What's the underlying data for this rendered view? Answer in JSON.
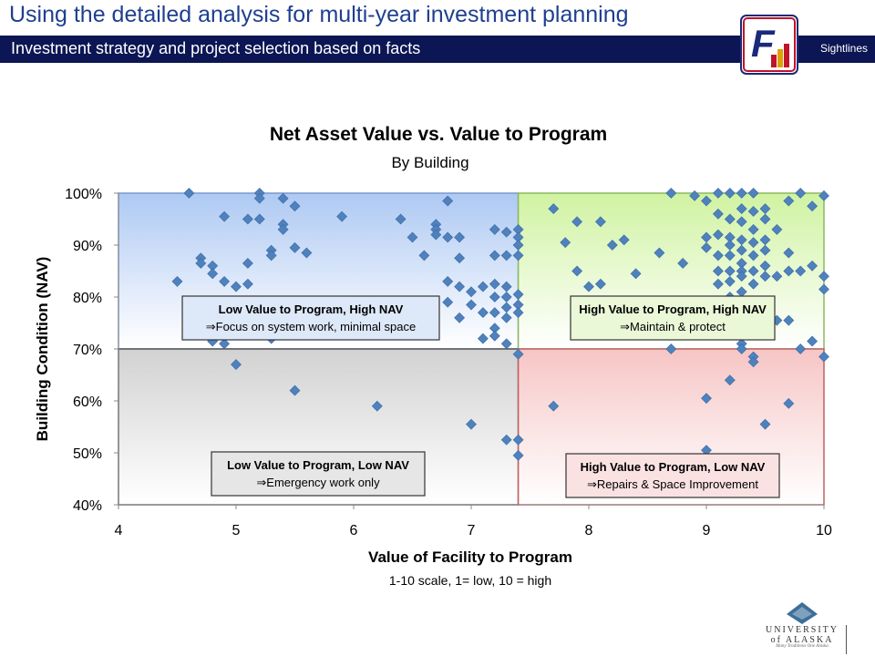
{
  "header": {
    "title": "Using the detailed analysis for multi-year investment planning",
    "subtitle": "Investment strategy and project selection based on facts",
    "brand": "Sightlines",
    "logo_letter": "F"
  },
  "footer_logo": {
    "name": "UNIVERSITY of ALASKA",
    "tagline": "Many Traditions One Alaska"
  },
  "colors": {
    "header_bar": "#0c1654",
    "title_text": "#1f3f8f",
    "marker": "#4f81bd",
    "q_top_left": "#a9c6f2",
    "q_top_right": "#cdf29c",
    "q_bottom_left": "#cfcfcf",
    "q_bottom_right": "#f6c2c2"
  },
  "chart_data": {
    "type": "scatter",
    "title": "Net Asset Value vs. Value to Program",
    "subtitle": "By Building",
    "xlabel": "Value of Facility to Program",
    "xlabel_sub": "1-10 scale, 1= low, 10 = high",
    "ylabel": "Building Condition (NAV)",
    "xlim": [
      4,
      10
    ],
    "ylim": [
      40,
      100
    ],
    "xticks": [
      4,
      5,
      6,
      7,
      8,
      9,
      10
    ],
    "yticks": [
      40,
      50,
      60,
      70,
      80,
      90,
      100
    ],
    "ytick_suffix": "%",
    "divider": {
      "x": 7.4,
      "y": 70
    },
    "quadrants": [
      {
        "id": "top-left",
        "title": "Low Value to Program, High NAV",
        "text": "Focus on system work, minimal space"
      },
      {
        "id": "top-right",
        "title": "High Value to Program, High NAV",
        "text": "Maintain & protect"
      },
      {
        "id": "bottom-left",
        "title": "Low Value to Program, Low NAV",
        "text": "Emergency work only"
      },
      {
        "id": "bottom-right",
        "title": "High Value to Program, Low NAV",
        "text": "Repairs & Space Improvement"
      }
    ],
    "arrow_glyph": "⇒",
    "points": [
      [
        4.6,
        100
      ],
      [
        5.2,
        100
      ],
      [
        5.2,
        99
      ],
      [
        5.4,
        99
      ],
      [
        5.5,
        97.5
      ],
      [
        4.9,
        95.5
      ],
      [
        5.1,
        95
      ],
      [
        5.2,
        95
      ],
      [
        5.4,
        94
      ],
      [
        5.4,
        93
      ],
      [
        5.9,
        95.5
      ],
      [
        4.7,
        87.5
      ],
      [
        4.7,
        86.5
      ],
      [
        4.8,
        86
      ],
      [
        4.8,
        84.5
      ],
      [
        4.9,
        83
      ],
      [
        5.0,
        82
      ],
      [
        5.1,
        82.5
      ],
      [
        5.1,
        86.5
      ],
      [
        5.3,
        89
      ],
      [
        5.3,
        88
      ],
      [
        5.5,
        89.5
      ],
      [
        5.6,
        88.5
      ],
      [
        4.5,
        83
      ],
      [
        4.8,
        71.5
      ],
      [
        4.9,
        71
      ],
      [
        5.0,
        67
      ],
      [
        5.3,
        72
      ],
      [
        5.5,
        62
      ],
      [
        6.2,
        59
      ],
      [
        6.4,
        95
      ],
      [
        6.5,
        91.5
      ],
      [
        6.6,
        88
      ],
      [
        6.7,
        94
      ],
      [
        6.7,
        93
      ],
      [
        6.7,
        92
      ],
      [
        6.8,
        98.5
      ],
      [
        6.8,
        91.5
      ],
      [
        6.9,
        91.5
      ],
      [
        6.8,
        83
      ],
      [
        6.8,
        79
      ],
      [
        6.9,
        87.5
      ],
      [
        6.9,
        82
      ],
      [
        6.9,
        76
      ],
      [
        7.0,
        81
      ],
      [
        7.0,
        78.5
      ],
      [
        7.1,
        82
      ],
      [
        7.1,
        77
      ],
      [
        7.1,
        72
      ],
      [
        7.2,
        93
      ],
      [
        7.2,
        88
      ],
      [
        7.2,
        82.5
      ],
      [
        7.2,
        80
      ],
      [
        7.2,
        77
      ],
      [
        7.2,
        74
      ],
      [
        7.2,
        72.5
      ],
      [
        7.3,
        92.5
      ],
      [
        7.3,
        88
      ],
      [
        7.3,
        82
      ],
      [
        7.3,
        80
      ],
      [
        7.3,
        78
      ],
      [
        7.3,
        76
      ],
      [
        7.3,
        71
      ],
      [
        7.4,
        93
      ],
      [
        7.4,
        91.5
      ],
      [
        7.4,
        90
      ],
      [
        7.4,
        88
      ],
      [
        7.4,
        80.5
      ],
      [
        7.4,
        78.5
      ],
      [
        7.4,
        77
      ],
      [
        7.4,
        69
      ],
      [
        7.0,
        55.5
      ],
      [
        7.3,
        52.5
      ],
      [
        7.4,
        52.5
      ],
      [
        7.4,
        49.5
      ],
      [
        7.7,
        97
      ],
      [
        7.8,
        90.5
      ],
      [
        7.9,
        94.5
      ],
      [
        7.9,
        85
      ],
      [
        8.0,
        82
      ],
      [
        8.1,
        94.5
      ],
      [
        8.1,
        82.5
      ],
      [
        8.2,
        90
      ],
      [
        8.3,
        91
      ],
      [
        8.4,
        84.5
      ],
      [
        8.6,
        88.5
      ],
      [
        8.7,
        100
      ],
      [
        8.8,
        86.5
      ],
      [
        8.9,
        99.5
      ],
      [
        9.0,
        91.5
      ],
      [
        9.0,
        89.5
      ],
      [
        9.0,
        98.5
      ],
      [
        9.1,
        100
      ],
      [
        9.1,
        96
      ],
      [
        9.1,
        92
      ],
      [
        9.1,
        88
      ],
      [
        9.1,
        85
      ],
      [
        9.1,
        82.5
      ],
      [
        9.2,
        100
      ],
      [
        9.2,
        95
      ],
      [
        9.2,
        91.5
      ],
      [
        9.2,
        90
      ],
      [
        9.2,
        88
      ],
      [
        9.2,
        85
      ],
      [
        9.2,
        83
      ],
      [
        9.2,
        80
      ],
      [
        9.3,
        100
      ],
      [
        9.3,
        97
      ],
      [
        9.3,
        94.5
      ],
      [
        9.3,
        91
      ],
      [
        9.3,
        89
      ],
      [
        9.3,
        86.5
      ],
      [
        9.3,
        85
      ],
      [
        9.3,
        84
      ],
      [
        9.3,
        81
      ],
      [
        9.4,
        100
      ],
      [
        9.4,
        96.5
      ],
      [
        9.4,
        93
      ],
      [
        9.4,
        90.5
      ],
      [
        9.4,
        88
      ],
      [
        9.4,
        85
      ],
      [
        9.4,
        82.5
      ],
      [
        9.5,
        97
      ],
      [
        9.5,
        95
      ],
      [
        9.5,
        91
      ],
      [
        9.5,
        89
      ],
      [
        9.5,
        86
      ],
      [
        9.5,
        84
      ],
      [
        9.6,
        93
      ],
      [
        9.6,
        84
      ],
      [
        9.7,
        98.5
      ],
      [
        9.7,
        88.5
      ],
      [
        9.7,
        85
      ],
      [
        9.8,
        100
      ],
      [
        9.8,
        85
      ],
      [
        9.9,
        97.5
      ],
      [
        9.9,
        86
      ],
      [
        10.0,
        99.5
      ],
      [
        10.0,
        84
      ],
      [
        10.0,
        81.5
      ],
      [
        9.6,
        75.5
      ],
      [
        9.7,
        75.5
      ],
      [
        9.3,
        71
      ],
      [
        9.3,
        70
      ],
      [
        9.8,
        70
      ],
      [
        9.9,
        71.5
      ],
      [
        8.7,
        70
      ],
      [
        9.4,
        68.5
      ],
      [
        9.4,
        67.5
      ],
      [
        9.2,
        64
      ],
      [
        9.0,
        60.5
      ],
      [
        9.7,
        59.5
      ],
      [
        7.7,
        59
      ],
      [
        9.5,
        55.5
      ],
      [
        9.0,
        50.5
      ],
      [
        10.0,
        68.5
      ]
    ]
  }
}
